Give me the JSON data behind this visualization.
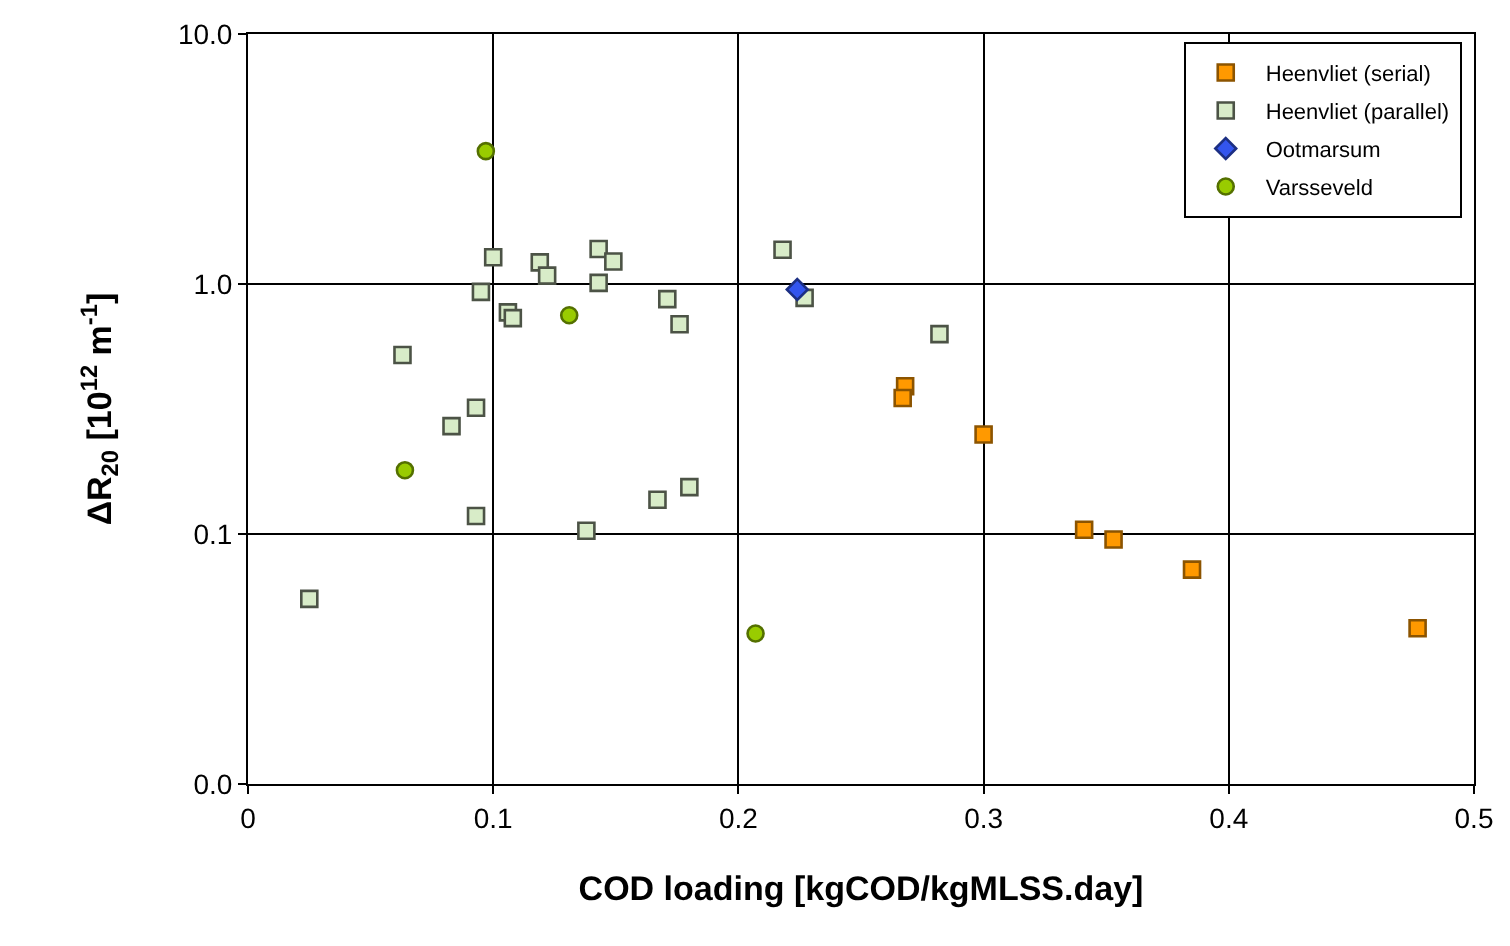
{
  "chart_data": {
    "type": "scatter",
    "xlabel": "COD loading [kgCOD/kgMLSS.day]",
    "ylabel": "ΔR$_{20}$ [10$^{12}$ m$^{-1}$]",
    "xlim": [
      0,
      0.5
    ],
    "xticks": [
      0,
      0.1,
      0.2,
      0.3,
      0.4,
      0.5
    ],
    "ylim": [
      0.01,
      10
    ],
    "yticks": [
      {
        "value": 0.01,
        "label": "0.0"
      },
      0.1,
      {
        "value": 1,
        "label": "1.0"
      },
      {
        "value": 10,
        "label": "10.0"
      }
    ],
    "log": "y",
    "grid": true,
    "legend": "top right",
    "series": [
      {
        "name": "Heenvliet (serial)",
        "color": "#ff9900",
        "marker": "square",
        "x": [
          0.268,
          0.267,
          0.3,
          0.341,
          0.353,
          0.385,
          0.477
        ],
        "values": [
          0.39,
          0.35,
          0.25,
          0.104,
          0.095,
          0.072,
          0.042
        ]
      },
      {
        "name": "Heenvliet (parallel)",
        "color": "#d8ecc8",
        "marker": "square",
        "x": [
          0.218,
          0.227,
          0.282,
          0.171,
          0.176,
          0.18,
          0.167,
          0.1,
          0.119,
          0.122,
          0.143,
          0.149,
          0.143,
          0.095,
          0.106,
          0.108,
          0.063,
          0.093,
          0.083,
          0.093,
          0.138,
          0.025
        ],
        "values": [
          1.37,
          0.88,
          0.63,
          0.87,
          0.69,
          0.154,
          0.137,
          1.28,
          1.22,
          1.08,
          1.38,
          1.23,
          1.01,
          0.93,
          0.77,
          0.73,
          0.52,
          0.32,
          0.27,
          0.118,
          0.103,
          0.055
        ]
      },
      {
        "name": "Ootmarsum",
        "color": "#3355ee",
        "marker": "diamond",
        "x": [
          0.224
        ],
        "values": [
          0.95
        ]
      },
      {
        "name": "Varsseveld",
        "color": "#99cc00",
        "marker": "circle",
        "x": [
          0.097,
          0.131,
          0.064,
          0.207
        ],
        "values": [
          3.4,
          0.75,
          0.18,
          0.04
        ]
      }
    ]
  }
}
